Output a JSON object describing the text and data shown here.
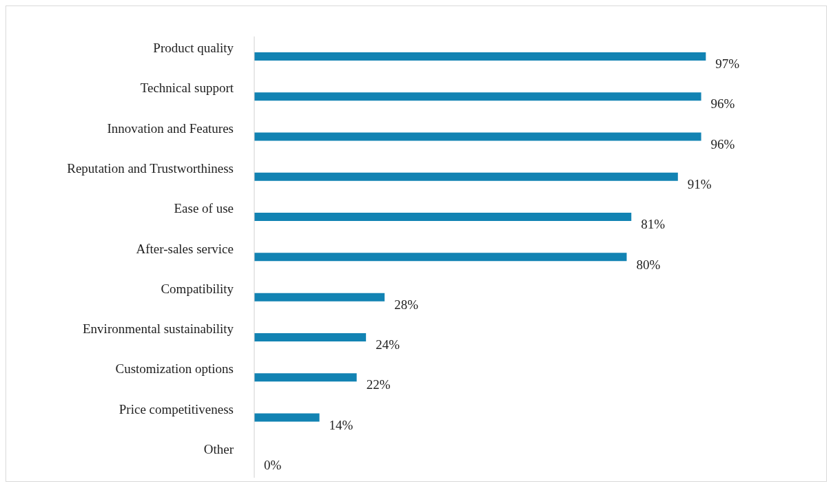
{
  "chart_data": {
    "type": "bar",
    "orientation": "horizontal",
    "categories": [
      "Product quality",
      "Technical support",
      "Innovation and Features",
      "Reputation and Trustworthiness",
      "Ease of use",
      "After-sales service",
      "Compatibility",
      "Environmental sustainability",
      "Customization options",
      "Price competitiveness",
      "Other"
    ],
    "values": [
      97,
      96,
      96,
      91,
      81,
      80,
      28,
      24,
      22,
      14,
      0
    ],
    "value_labels": [
      "97%",
      "96%",
      "96%",
      "91%",
      "81%",
      "80%",
      "28%",
      "24%",
      "22%",
      "14%",
      "0%"
    ],
    "color": "#1283b3"
  }
}
